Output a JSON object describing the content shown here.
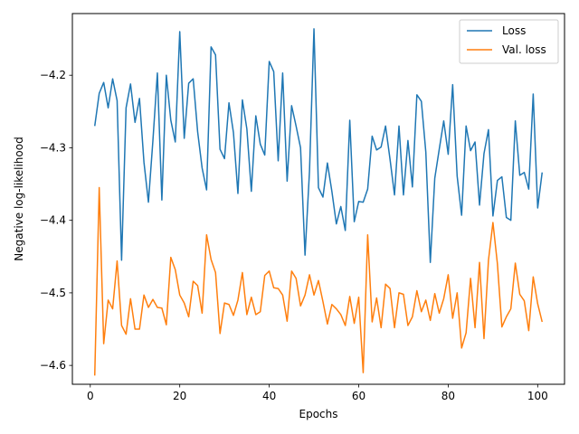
{
  "chart_data": {
    "type": "line",
    "title": "",
    "xlabel": "Epochs",
    "ylabel": "Negative log-likelihood",
    "xlim": [
      -4,
      106
    ],
    "ylim": [
      -4.626,
      -4.115
    ],
    "xticks": [
      0,
      20,
      40,
      60,
      80,
      100
    ],
    "yticks": [
      -4.6,
      -4.5,
      -4.4,
      -4.3,
      -4.2
    ],
    "ytick_labels": [
      "−4.6",
      "−4.5",
      "−4.4",
      "−4.3",
      "−4.2"
    ],
    "grid": false,
    "legend_position": "top-right",
    "x": [
      1,
      2,
      3,
      4,
      5,
      6,
      7,
      8,
      9,
      10,
      11,
      12,
      13,
      14,
      15,
      16,
      17,
      18,
      19,
      20,
      21,
      22,
      23,
      24,
      25,
      26,
      27,
      28,
      29,
      30,
      31,
      32,
      33,
      34,
      35,
      36,
      37,
      38,
      39,
      40,
      41,
      42,
      43,
      44,
      45,
      46,
      47,
      48,
      49,
      50,
      51,
      52,
      53,
      54,
      55,
      56,
      57,
      58,
      59,
      60,
      61,
      62,
      63,
      64,
      65,
      66,
      67,
      68,
      69,
      70,
      71,
      72,
      73,
      74,
      75,
      76,
      77,
      78,
      79,
      80,
      81,
      82,
      83,
      84,
      85,
      86,
      87,
      88,
      89,
      90,
      91,
      92,
      93,
      94,
      95,
      96,
      97,
      98,
      99,
      100,
      101
    ],
    "series": [
      {
        "name": "Loss",
        "color": "#1f77b4",
        "values": [
          -4.27,
          -4.225,
          -4.21,
          -4.245,
          -4.205,
          -4.235,
          -4.455,
          -4.245,
          -4.212,
          -4.265,
          -4.232,
          -4.32,
          -4.375,
          -4.29,
          -4.197,
          -4.372,
          -4.2,
          -4.262,
          -4.292,
          -4.14,
          -4.287,
          -4.211,
          -4.205,
          -4.278,
          -4.328,
          -4.358,
          -4.161,
          -4.172,
          -4.302,
          -4.315,
          -4.238,
          -4.279,
          -4.363,
          -4.234,
          -4.274,
          -4.36,
          -4.256,
          -4.295,
          -4.31,
          -4.181,
          -4.195,
          -4.318,
          -4.197,
          -4.346,
          -4.242,
          -4.27,
          -4.3,
          -4.448,
          -4.332,
          -4.136,
          -4.355,
          -4.368,
          -4.321,
          -4.36,
          -4.405,
          -4.381,
          -4.414,
          -4.262,
          -4.402,
          -4.374,
          -4.375,
          -4.357,
          -4.284,
          -4.303,
          -4.299,
          -4.27,
          -4.316,
          -4.365,
          -4.27,
          -4.365,
          -4.29,
          -4.354,
          -4.227,
          -4.236,
          -4.306,
          -4.458,
          -4.342,
          -4.302,
          -4.263,
          -4.309,
          -4.213,
          -4.339,
          -4.393,
          -4.27,
          -4.304,
          -4.292,
          -4.379,
          -4.308,
          -4.275,
          -4.394,
          -4.345,
          -4.34,
          -4.396,
          -4.4,
          -4.263,
          -4.338,
          -4.334,
          -4.357,
          -4.226,
          -4.383,
          -4.334
        ]
      },
      {
        "name": "Val. loss",
        "color": "#ff7f0e",
        "values": [
          -4.614,
          -4.355,
          -4.57,
          -4.51,
          -4.522,
          -4.456,
          -4.545,
          -4.557,
          -4.508,
          -4.55,
          -4.55,
          -4.503,
          -4.52,
          -4.509,
          -4.52,
          -4.521,
          -4.544,
          -4.451,
          -4.468,
          -4.503,
          -4.514,
          -4.533,
          -4.484,
          -4.49,
          -4.528,
          -4.42,
          -4.454,
          -4.472,
          -4.556,
          -4.514,
          -4.516,
          -4.531,
          -4.51,
          -4.472,
          -4.53,
          -4.506,
          -4.53,
          -4.526,
          -4.476,
          -4.47,
          -4.493,
          -4.494,
          -4.503,
          -4.539,
          -4.47,
          -4.48,
          -4.518,
          -4.503,
          -4.475,
          -4.503,
          -4.483,
          -4.512,
          -4.543,
          -4.516,
          -4.522,
          -4.53,
          -4.545,
          -4.505,
          -4.542,
          -4.506,
          -4.61,
          -4.42,
          -4.54,
          -4.507,
          -4.548,
          -4.488,
          -4.494,
          -4.548,
          -4.5,
          -4.502,
          -4.545,
          -4.533,
          -4.497,
          -4.526,
          -4.51,
          -4.538,
          -4.501,
          -4.528,
          -4.508,
          -4.475,
          -4.535,
          -4.5,
          -4.576,
          -4.555,
          -4.48,
          -4.548,
          -4.458,
          -4.563,
          -4.455,
          -4.403,
          -4.46,
          -4.547,
          -4.533,
          -4.522,
          -4.459,
          -4.502,
          -4.511,
          -4.552,
          -4.478,
          -4.515,
          -4.54
        ]
      }
    ]
  }
}
